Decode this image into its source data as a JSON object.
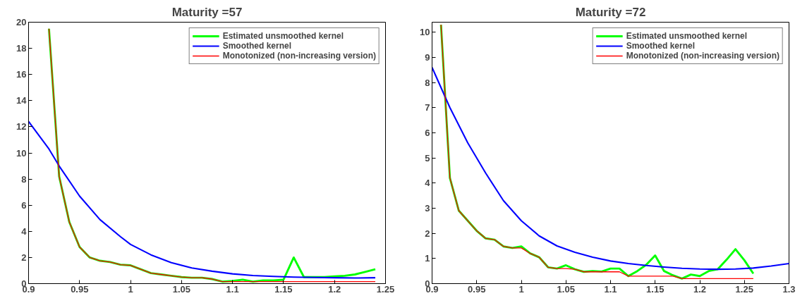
{
  "chart_data": [
    {
      "type": "line",
      "title": "Maturity =57",
      "xlim": [
        0.9,
        1.25
      ],
      "ylim": [
        0,
        20
      ],
      "xticks": [
        {
          "value": 0.9,
          "label": "0.9"
        },
        0.95,
        {
          "value": 1,
          "label": "1"
        },
        1.05,
        1.1,
        1.15,
        1.2,
        1.25
      ],
      "yticks": [
        0,
        2,
        4,
        6,
        8,
        10,
        12,
        14,
        16,
        18,
        20
      ],
      "grid": false,
      "legend": "top right",
      "marker": "none",
      "line_style": "solid",
      "series": [
        {
          "name": "Estimated unsmoothed kernel",
          "color": "#00ff00",
          "x": [
            0.92,
            0.93,
            0.94,
            0.95,
            0.96,
            0.97,
            0.98,
            0.99,
            1.0,
            1.01,
            1.02,
            1.03,
            1.04,
            1.05,
            1.06,
            1.07,
            1.08,
            1.09,
            1.1,
            1.11,
            1.12,
            1.13,
            1.14,
            1.15,
            1.16,
            1.17,
            1.18,
            1.19,
            1.2,
            1.21,
            1.22,
            1.23,
            1.24
          ],
          "values": [
            19.5,
            8.2,
            4.7,
            2.8,
            2.0,
            1.75,
            1.65,
            1.45,
            1.4,
            1.1,
            0.8,
            0.7,
            0.6,
            0.5,
            0.45,
            0.45,
            0.35,
            0.15,
            0.2,
            0.3,
            0.15,
            0.25,
            0.25,
            0.3,
            2.0,
            0.5,
            0.5,
            0.5,
            0.55,
            0.6,
            0.7,
            0.9,
            1.1
          ]
        },
        {
          "name": "Smoothed kernel",
          "color": "#0000ff",
          "x": [
            0.9,
            0.92,
            0.93,
            0.95,
            0.97,
            0.99,
            1.0,
            1.02,
            1.04,
            1.06,
            1.08,
            1.1,
            1.12,
            1.14,
            1.16,
            1.18,
            1.2,
            1.22,
            1.24
          ],
          "values": [
            12.4,
            10.3,
            9.0,
            6.7,
            4.9,
            3.6,
            3.0,
            2.2,
            1.6,
            1.2,
            0.95,
            0.75,
            0.62,
            0.55,
            0.5,
            0.47,
            0.45,
            0.43,
            0.45
          ]
        },
        {
          "name": "Monotonized (non-increasing version)",
          "color": "#ff0000",
          "x": [
            0.92,
            0.93,
            0.94,
            0.95,
            0.96,
            0.97,
            0.98,
            0.99,
            1.0,
            1.01,
            1.02,
            1.03,
            1.04,
            1.05,
            1.06,
            1.07,
            1.08,
            1.09,
            1.24
          ],
          "values": [
            19.5,
            8.2,
            4.7,
            2.8,
            2.0,
            1.75,
            1.65,
            1.45,
            1.4,
            1.1,
            0.8,
            0.7,
            0.6,
            0.5,
            0.45,
            0.45,
            0.35,
            0.15,
            0.15
          ]
        }
      ]
    },
    {
      "type": "line",
      "title": "Maturity =72",
      "xlim": [
        0.9,
        1.3
      ],
      "ylim": [
        0,
        10.4
      ],
      "xticks": [
        {
          "value": 0.9,
          "label": "0.9"
        },
        0.95,
        {
          "value": 1,
          "label": "1"
        },
        1.05,
        1.1,
        1.15,
        1.2,
        1.25,
        {
          "value": 1.3,
          "label": "1.3"
        }
      ],
      "yticks": [
        0,
        1,
        2,
        3,
        4,
        5,
        6,
        7,
        8,
        9,
        10
      ],
      "grid": false,
      "legend": "top right",
      "marker": "none",
      "line_style": "solid",
      "series": [
        {
          "name": "Estimated unsmoothed kernel",
          "color": "#00ff00",
          "x": [
            0.91,
            0.92,
            0.93,
            0.94,
            0.95,
            0.96,
            0.97,
            0.98,
            0.99,
            1.0,
            1.01,
            1.02,
            1.03,
            1.04,
            1.05,
            1.06,
            1.07,
            1.08,
            1.09,
            1.1,
            1.11,
            1.12,
            1.13,
            1.14,
            1.15,
            1.16,
            1.17,
            1.18,
            1.19,
            1.2,
            1.21,
            1.22,
            1.23,
            1.24,
            1.25,
            1.26
          ],
          "values": [
            10.3,
            4.2,
            2.9,
            2.5,
            2.1,
            1.8,
            1.75,
            1.48,
            1.42,
            1.48,
            1.2,
            1.05,
            0.65,
            0.6,
            0.73,
            0.57,
            0.47,
            0.5,
            0.48,
            0.6,
            0.6,
            0.3,
            0.5,
            0.75,
            1.12,
            0.5,
            0.33,
            0.2,
            0.36,
            0.3,
            0.5,
            0.57,
            0.95,
            1.37,
            0.93,
            0.4
          ]
        },
        {
          "name": "Smoothed kernel",
          "color": "#0000ff",
          "x": [
            0.9,
            0.92,
            0.94,
            0.96,
            0.98,
            1.0,
            1.02,
            1.04,
            1.06,
            1.08,
            1.1,
            1.12,
            1.14,
            1.16,
            1.18,
            1.2,
            1.22,
            1.24,
            1.26,
            1.28,
            1.3
          ],
          "values": [
            8.6,
            7.0,
            5.6,
            4.4,
            3.3,
            2.5,
            1.9,
            1.5,
            1.25,
            1.05,
            0.9,
            0.8,
            0.72,
            0.66,
            0.61,
            0.58,
            0.57,
            0.58,
            0.62,
            0.7,
            0.8
          ]
        },
        {
          "name": "Monotonized (non-increasing version)",
          "color": "#ff0000",
          "x": [
            0.91,
            0.92,
            0.93,
            0.94,
            0.95,
            0.96,
            0.97,
            0.98,
            0.99,
            1.0,
            1.01,
            1.02,
            1.03,
            1.04,
            1.05,
            1.06,
            1.07,
            1.11,
            1.12,
            1.17,
            1.18,
            1.26
          ],
          "values": [
            10.3,
            4.2,
            2.9,
            2.5,
            2.1,
            1.8,
            1.75,
            1.48,
            1.42,
            1.42,
            1.2,
            1.05,
            0.65,
            0.6,
            0.6,
            0.57,
            0.47,
            0.47,
            0.3,
            0.3,
            0.2,
            0.2
          ]
        }
      ]
    }
  ]
}
